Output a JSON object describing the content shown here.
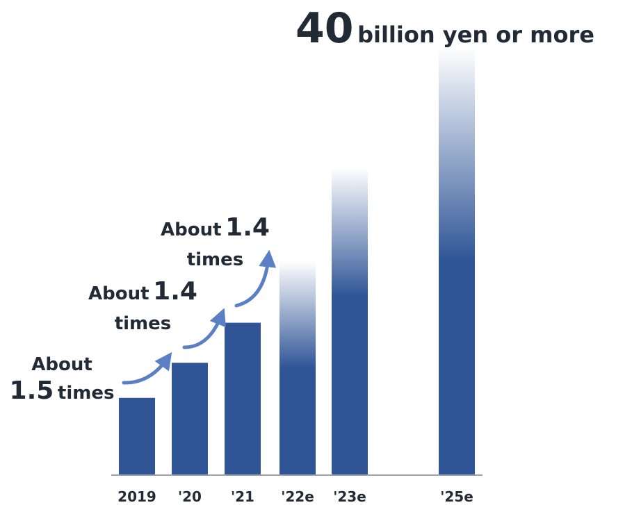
{
  "chart_data": {
    "type": "bar",
    "categories": [
      "2019",
      "'20",
      "'21",
      "'22e",
      "'23e",
      "'25e"
    ],
    "values": [
      10.8,
      15.7,
      21.3,
      29.9,
      43.0,
      59.8
    ],
    "estimated": [
      false,
      false,
      false,
      true,
      true,
      true
    ],
    "headline": {
      "value": "40",
      "unit": "billion yen or more"
    },
    "annotations": [
      {
        "from": "2019",
        "to": "'20",
        "prefix": "About",
        "value": "1.5",
        "suffix": "times"
      },
      {
        "from": "'20",
        "to": "'21",
        "prefix": "About",
        "value": "1.4",
        "suffix": "times"
      },
      {
        "from": "'21",
        "to": "'22e",
        "prefix": "About",
        "value": "1.4",
        "suffix": "times"
      }
    ],
    "colors": {
      "bar": "#2f5597",
      "arrow": "#5b7fc4",
      "axis": "#9aa3ad"
    },
    "grid": false
  }
}
